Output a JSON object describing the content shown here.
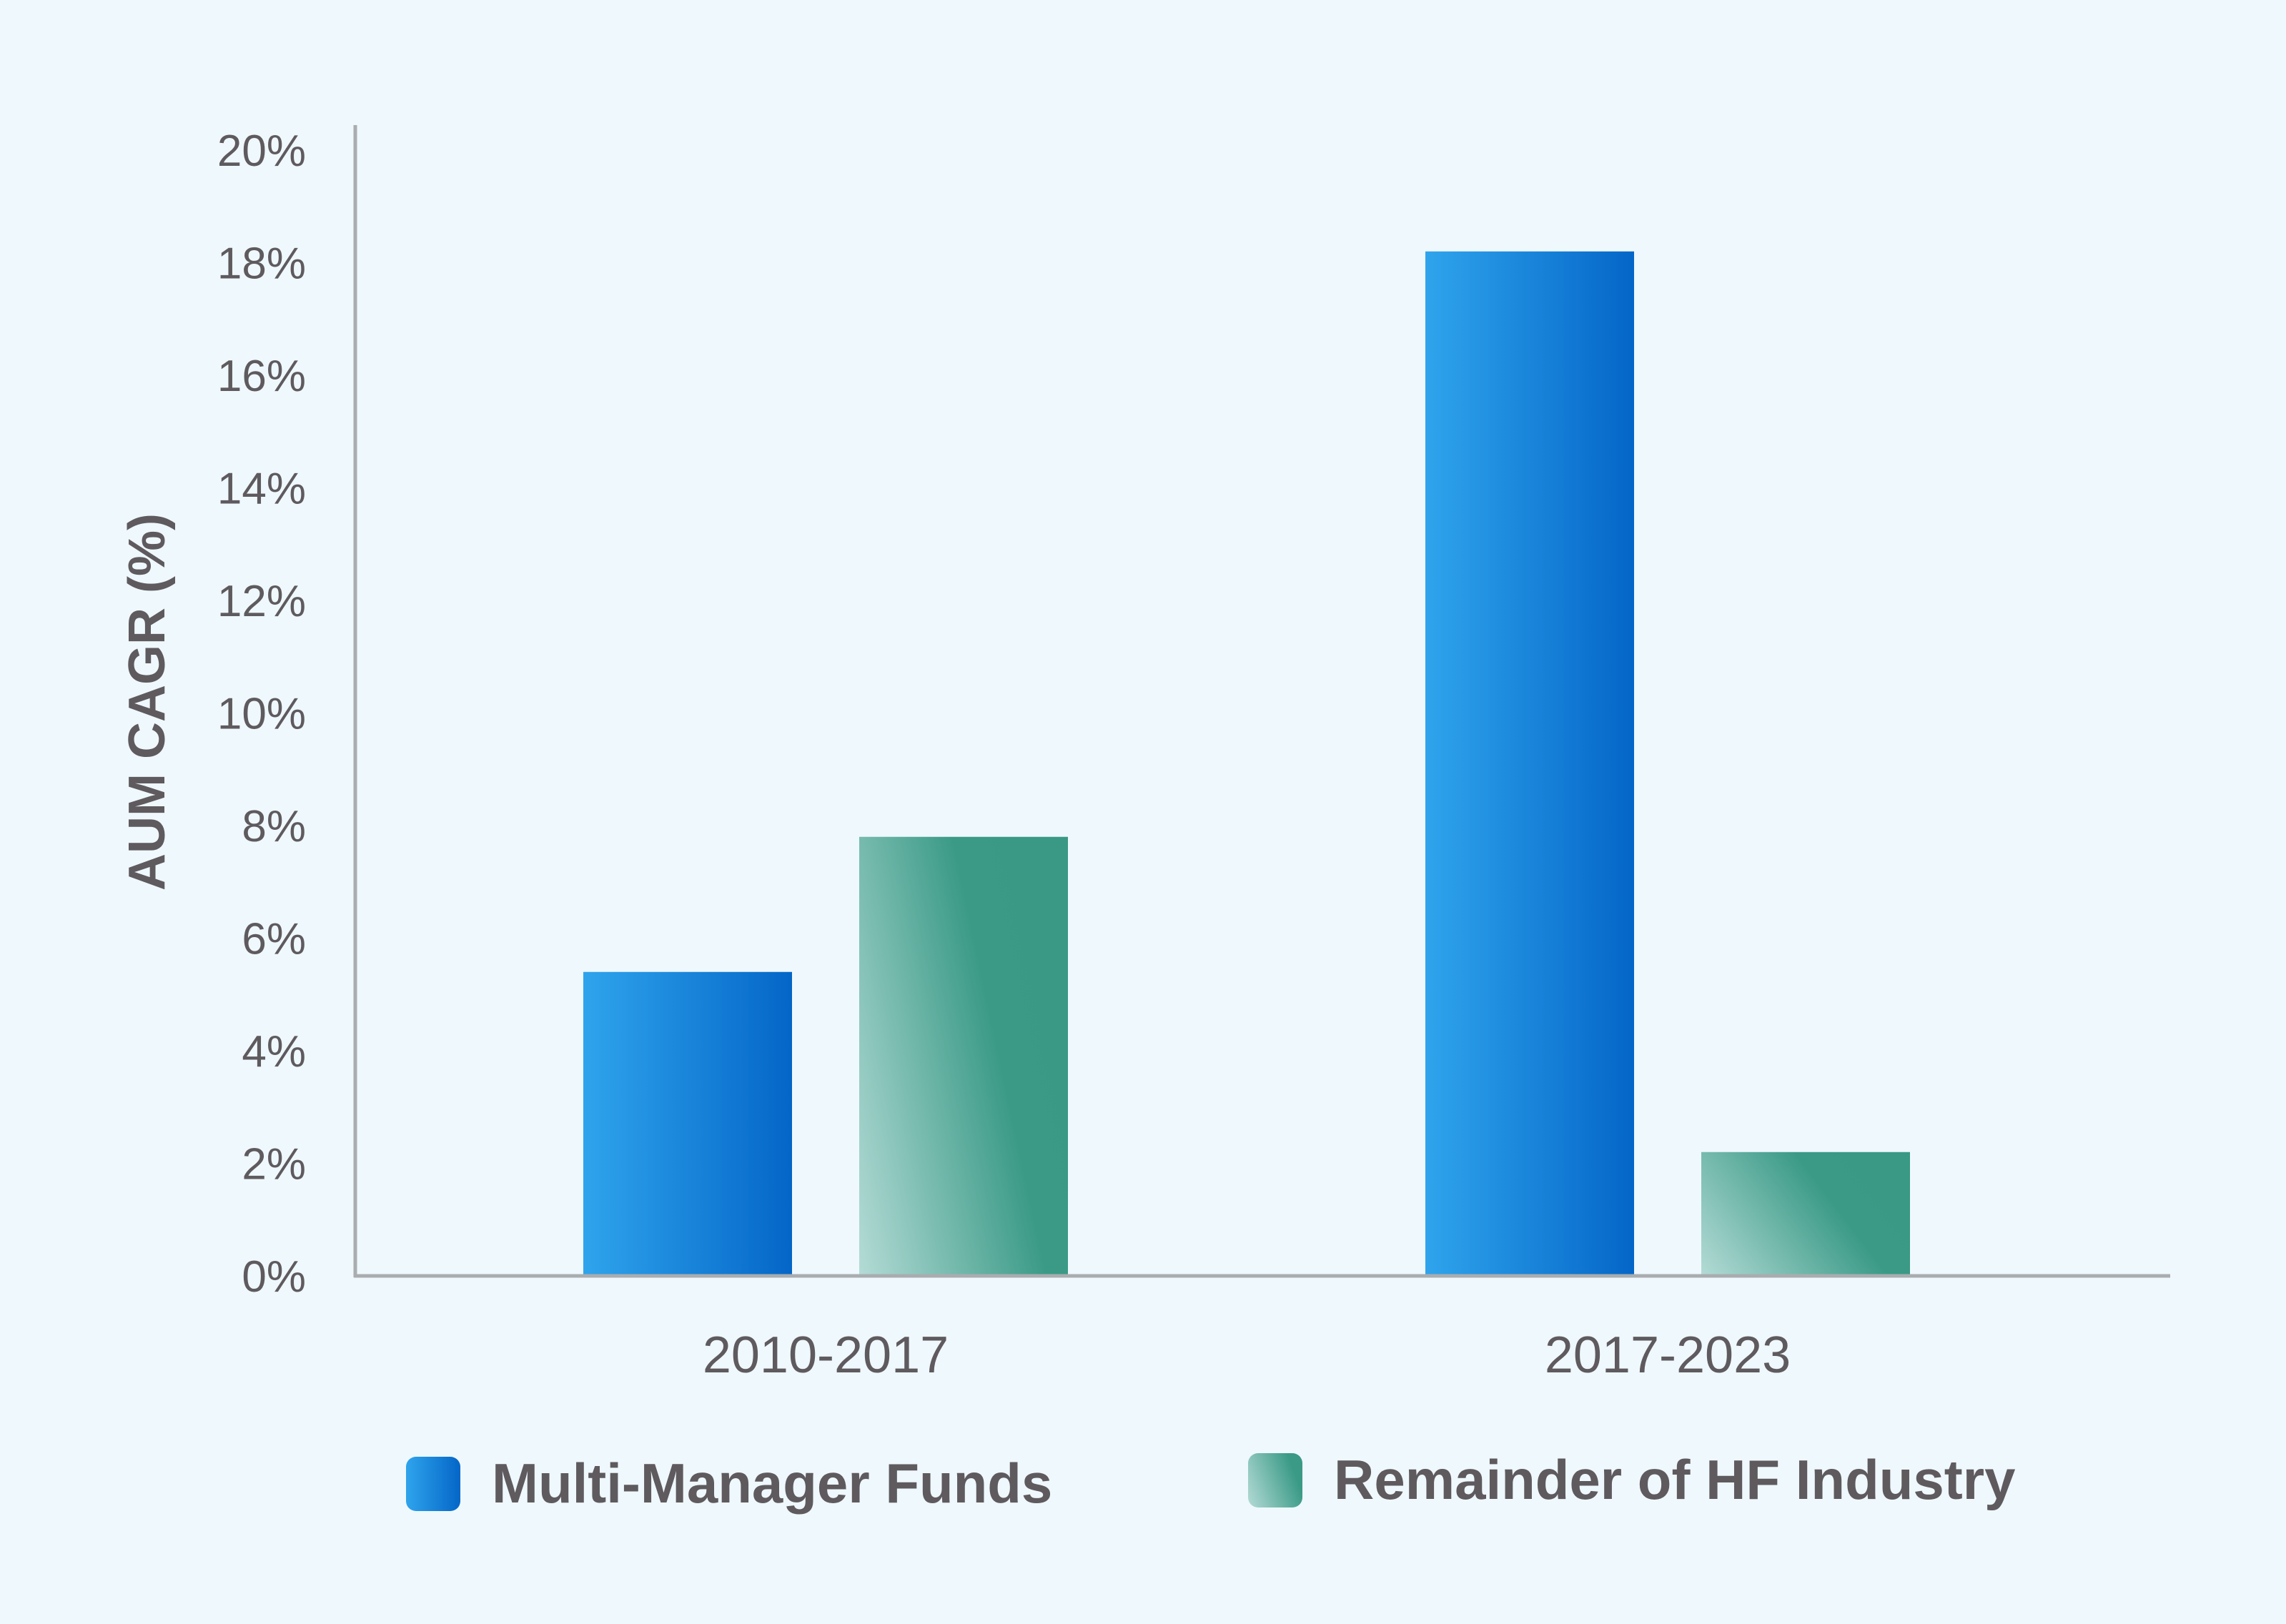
{
  "chart_data": {
    "type": "bar",
    "ylabel": "AUM CAGR (%)",
    "xlabel": "",
    "categories": [
      "2010-2017",
      "2017-2023"
    ],
    "series": [
      {
        "name": "Multi-Manager Funds",
        "values": [
          5.4,
          18.2
        ],
        "color": "#0a6fd0"
      },
      {
        "name": "Remainder of HF Industry",
        "values": [
          7.8,
          2.2
        ],
        "color": "#3a9a86"
      }
    ],
    "ylim": [
      0,
      20
    ],
    "yticks": [
      0,
      2,
      4,
      6,
      8,
      10,
      12,
      14,
      16,
      18,
      20
    ],
    "ytick_labels": [
      "0%",
      "2%",
      "4%",
      "6%",
      "8%",
      "10%",
      "12%",
      "14%",
      "16%",
      "18%",
      "20%"
    ],
    "grid": false,
    "legend_position": "bottom"
  }
}
